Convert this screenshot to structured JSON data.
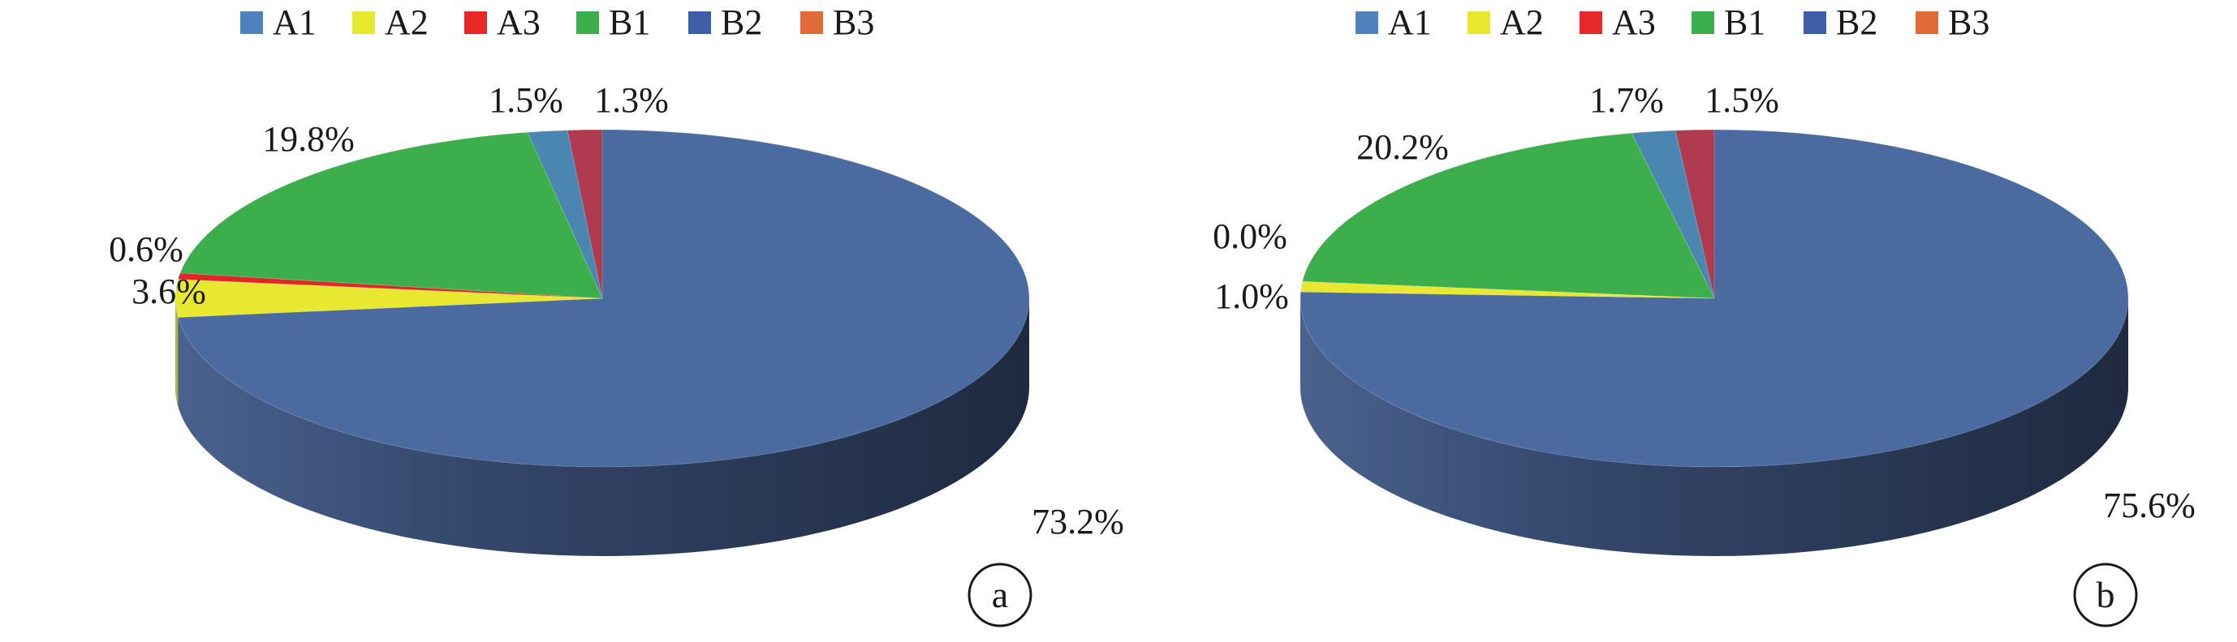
{
  "chart_data": [
    {
      "type": "pie",
      "variant": "3d",
      "panel_label": "a",
      "legend": {
        "placement": "top",
        "entries": [
          {
            "label": "A1",
            "color": "#4f81bd"
          },
          {
            "label": "A2",
            "color": "#e8e830"
          },
          {
            "label": "A3",
            "color": "#e82828"
          },
          {
            "label": "B1",
            "color": "#3cae4c"
          },
          {
            "label": "B2",
            "color": "#3d5fa8"
          },
          {
            "label": "B3",
            "color": "#e06a38"
          }
        ]
      },
      "slices": [
        {
          "series": "B2",
          "value": 73.2,
          "label": "73.2%",
          "color": "#4a6aa0"
        },
        {
          "series": "A2",
          "value": 3.6,
          "label": "3.6%",
          "color": "#e8e830"
        },
        {
          "series": "A3",
          "value": 0.6,
          "label": "0.6%",
          "color": "#e02626"
        },
        {
          "series": "B1",
          "value": 19.8,
          "label": "19.8%",
          "color": "#3caf4c"
        },
        {
          "series": "A1",
          "value": 1.5,
          "label": "1.5%",
          "color": "#4a86b0"
        },
        {
          "series": "B3",
          "value": 1.3,
          "label": "1.3%",
          "color": "#b03a50"
        }
      ]
    },
    {
      "type": "pie",
      "variant": "3d",
      "panel_label": "b",
      "legend": {
        "placement": "top",
        "entries": [
          {
            "label": "A1",
            "color": "#4f81bd"
          },
          {
            "label": "A2",
            "color": "#e8e830"
          },
          {
            "label": "A3",
            "color": "#e82828"
          },
          {
            "label": "B1",
            "color": "#3cae4c"
          },
          {
            "label": "B2",
            "color": "#3d5fa8"
          },
          {
            "label": "B3",
            "color": "#e06a38"
          }
        ]
      },
      "slices": [
        {
          "series": "B2",
          "value": 75.6,
          "label": "75.6%",
          "color": "#4a6aa0"
        },
        {
          "series": "A2",
          "value": 1.0,
          "label": "1.0%",
          "color": "#e8e830"
        },
        {
          "series": "A3",
          "value": 0.0,
          "label": "0.0%",
          "color": "#e02626"
        },
        {
          "series": "B1",
          "value": 20.2,
          "label": "20.2%",
          "color": "#3caf4c"
        },
        {
          "series": "A1",
          "value": 1.7,
          "label": "1.7%",
          "color": "#4a86b0"
        },
        {
          "series": "B3",
          "value": 1.5,
          "label": "1.5%",
          "color": "#b03a50"
        }
      ]
    }
  ]
}
